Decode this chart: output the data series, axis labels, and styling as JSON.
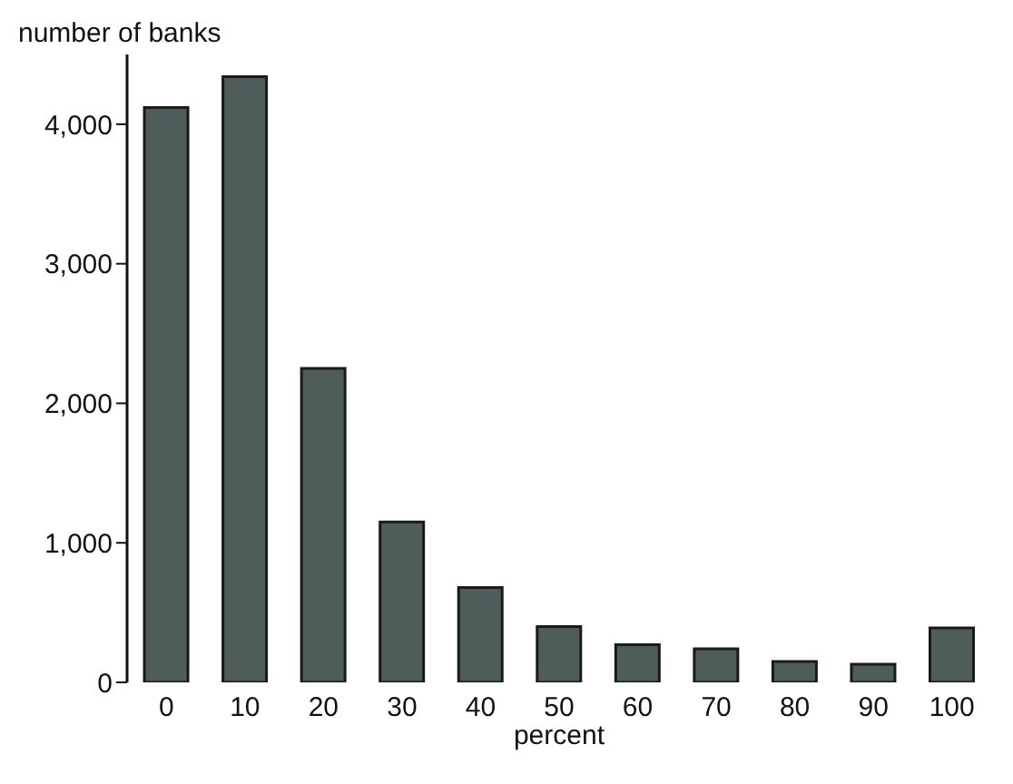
{
  "chart_data": {
    "type": "bar",
    "ylabel": "number of banks",
    "xlabel": "percent",
    "categories": [
      "0",
      "10",
      "20",
      "30",
      "40",
      "50",
      "60",
      "70",
      "80",
      "90",
      "100"
    ],
    "values": [
      4120,
      4340,
      2250,
      1150,
      680,
      400,
      270,
      240,
      150,
      130,
      390
    ],
    "color": "#4e5d5a",
    "ylim": [
      0,
      4500
    ],
    "yticks": [
      {
        "value": 0,
        "label": "0"
      },
      {
        "value": 1000,
        "label": "1,000"
      },
      {
        "value": 2000,
        "label": "2,000"
      },
      {
        "value": 3000,
        "label": "3,000"
      },
      {
        "value": 4000,
        "label": "4,000"
      }
    ],
    "grid": false
  }
}
